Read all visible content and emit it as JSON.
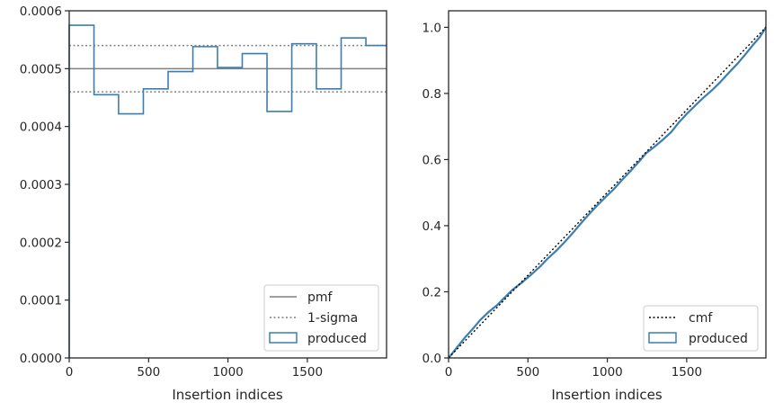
{
  "chart_data": [
    {
      "type": "step",
      "title": "",
      "xlabel": "Insertion indices",
      "ylabel": "",
      "xlim": [
        0,
        1999
      ],
      "ylim": [
        0,
        0.0006
      ],
      "xticks": [
        0,
        500,
        1000,
        1500
      ],
      "xtick_labels": [
        "0",
        "500",
        "1000",
        "1500"
      ],
      "yticks": [
        0,
        0.0001,
        0.0002,
        0.0003,
        0.0004,
        0.0005,
        0.0006
      ],
      "ytick_labels": [
        "0.0000",
        "0.0001",
        "0.0002",
        "0.0003",
        "0.0004",
        "0.0005",
        "0.0006"
      ],
      "legend_position": "lower-right",
      "pmf": {
        "name": "pmf",
        "y": 0.0005,
        "color": "#808080"
      },
      "sigma": {
        "name": "1-sigma",
        "y": [
          0.00046,
          0.00054
        ],
        "color": "#808080"
      },
      "produced": {
        "name": "produced",
        "color": "#3a7fb0",
        "bin_edges": [
          0,
          156,
          311,
          467,
          623,
          779,
          934,
          1090,
          1246,
          1402,
          1557,
          1713,
          1869,
          1999
        ],
        "values": [
          0.000575,
          0.000455,
          0.000422,
          0.000465,
          0.000495,
          0.000538,
          0.000502,
          0.000526,
          0.000426,
          0.000543,
          0.000465,
          0.000553,
          0.00054
        ]
      }
    },
    {
      "type": "line",
      "title": "",
      "xlabel": "Insertion indices",
      "ylabel": "",
      "xlim": [
        0,
        1999
      ],
      "ylim": [
        0,
        1.05
      ],
      "xticks": [
        0,
        500,
        1000,
        1500
      ],
      "xtick_labels": [
        "0",
        "500",
        "1000",
        "1500"
      ],
      "yticks": [
        0,
        0.2,
        0.4,
        0.6,
        0.8,
        1.0
      ],
      "ytick_labels": [
        "0.0",
        "0.2",
        "0.4",
        "0.6",
        "0.8",
        "1.0"
      ],
      "legend_position": "lower-right",
      "cmf": {
        "name": "cmf",
        "x": [
          0,
          1999
        ],
        "y": [
          0,
          1.0
        ],
        "color": "#000000"
      },
      "produced": {
        "name": "produced",
        "color": "#3a7fb0",
        "x": [
          0,
          50,
          100,
          156,
          200,
          250,
          311,
          360,
          400,
          467,
          520,
          580,
          623,
          680,
          730,
          779,
          830,
          880,
          934,
          990,
          1040,
          1090,
          1140,
          1200,
          1246,
          1300,
          1350,
          1402,
          1450,
          1500,
          1557,
          1600,
          1660,
          1713,
          1760,
          1820,
          1869,
          1920,
          1960,
          1999
        ],
        "y": [
          0.0,
          0.03,
          0.06,
          0.09,
          0.115,
          0.138,
          0.162,
          0.186,
          0.205,
          0.23,
          0.252,
          0.278,
          0.3,
          0.325,
          0.35,
          0.376,
          0.405,
          0.432,
          0.46,
          0.487,
          0.51,
          0.537,
          0.562,
          0.594,
          0.62,
          0.64,
          0.66,
          0.683,
          0.712,
          0.738,
          0.765,
          0.785,
          0.81,
          0.835,
          0.86,
          0.89,
          0.918,
          0.948,
          0.97,
          1.0
        ]
      }
    }
  ]
}
